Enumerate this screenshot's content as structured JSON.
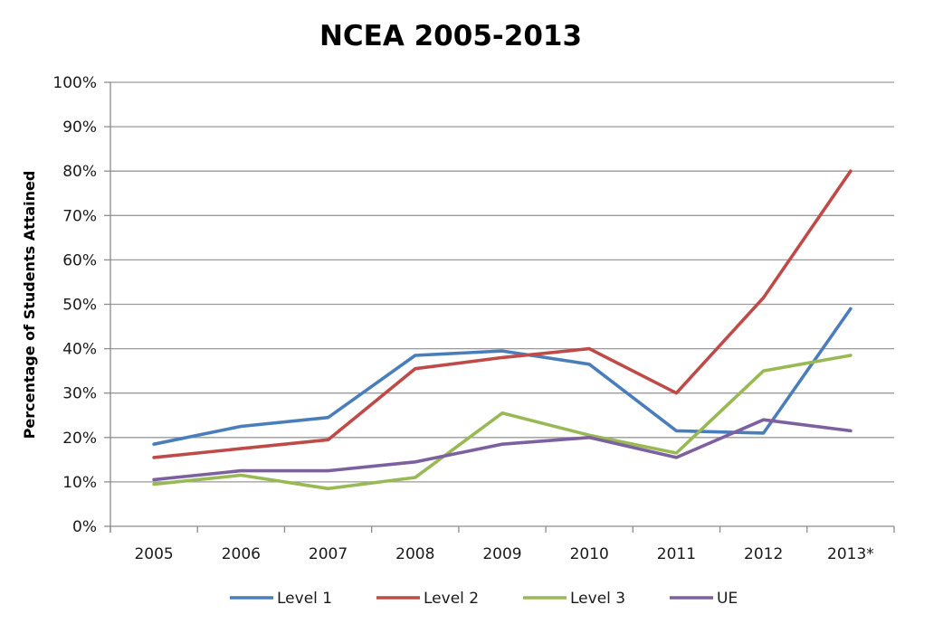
{
  "chart_data": {
    "type": "line",
    "title": "NCEA 2005-2013",
    "xlabel": "",
    "ylabel": "Percentage of Students Attained",
    "categories": [
      "2005",
      "2006",
      "2007",
      "2008",
      "2009",
      "2010",
      "2011",
      "2012",
      "2013*"
    ],
    "ylim": [
      0,
      100
    ],
    "yticks": [
      "0%",
      "10%",
      "20%",
      "30%",
      "40%",
      "50%",
      "60%",
      "70%",
      "80%",
      "90%",
      "100%"
    ],
    "grid": true,
    "legend_position": "bottom",
    "series": [
      {
        "name": "Level 1",
        "color": "#4a7ebb",
        "values": [
          18.5,
          22.5,
          24.5,
          38.5,
          39.5,
          36.5,
          21.5,
          21,
          49
        ]
      },
      {
        "name": "Level 2",
        "color": "#be4b48",
        "values": [
          15.5,
          17.5,
          19.5,
          35.5,
          38,
          40,
          30,
          51.5,
          80
        ]
      },
      {
        "name": "Level 3",
        "color": "#98b954",
        "values": [
          9.5,
          11.5,
          8.5,
          11,
          25.5,
          20.5,
          16.5,
          35,
          38.5
        ]
      },
      {
        "name": "UE",
        "color": "#7d60a0",
        "values": [
          10.5,
          12.5,
          12.5,
          14.5,
          18.5,
          20,
          15.5,
          24,
          21.5
        ]
      }
    ]
  }
}
